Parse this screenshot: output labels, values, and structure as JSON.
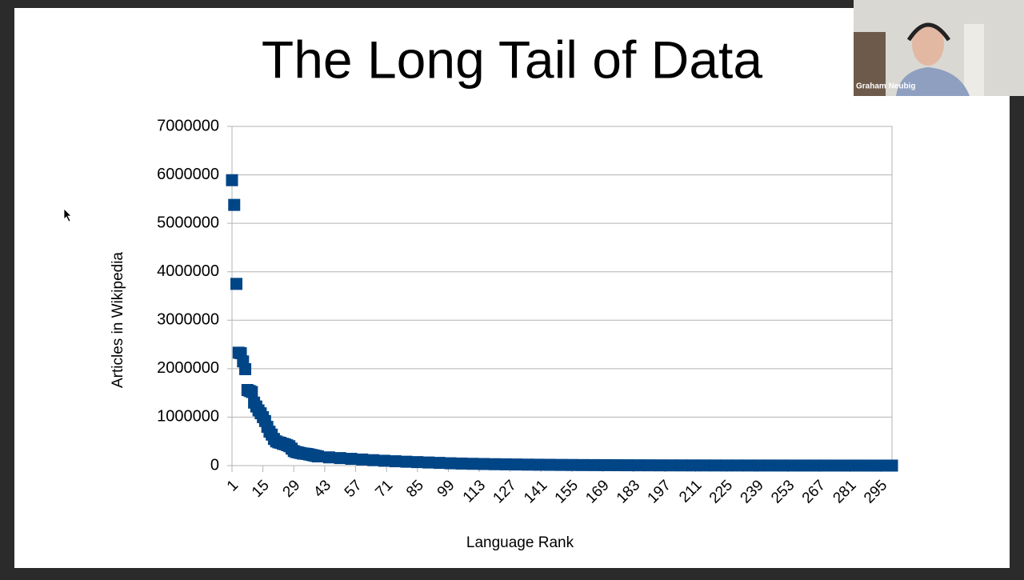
{
  "chart_data": {
    "type": "scatter",
    "title": "The Long Tail of Data",
    "x_label": "Language Rank",
    "y_label": "Articles in Wikipedia",
    "color": "#004586",
    "grid": true,
    "xlim": [
      1,
      300
    ],
    "ylim": [
      0,
      7000000
    ],
    "xticks": [
      1,
      15,
      29,
      43,
      57,
      71,
      85,
      99,
      113,
      127,
      141,
      155,
      169,
      183,
      197,
      211,
      225,
      239,
      253,
      267,
      281,
      295
    ],
    "yticks": [
      0,
      1000000,
      2000000,
      3000000,
      4000000,
      5000000,
      6000000,
      7000000
    ],
    "x": [
      1,
      2,
      3,
      4,
      5,
      6,
      7,
      8,
      9,
      10,
      11,
      12,
      13,
      14,
      15,
      16,
      17,
      18,
      19,
      20,
      21,
      22,
      23,
      24,
      25,
      26,
      27,
      28,
      29,
      30,
      31,
      32,
      33,
      34,
      35,
      36,
      37,
      38,
      39,
      40,
      45,
      50,
      55,
      60,
      65,
      70,
      75,
      80,
      85,
      90,
      95,
      100,
      105,
      110,
      115,
      120,
      125,
      130,
      135,
      140,
      145,
      150,
      155,
      160,
      165,
      170,
      175,
      180,
      185,
      190,
      195,
      200,
      205,
      210,
      215,
      220,
      225,
      230,
      235,
      240,
      245,
      250,
      255,
      260,
      265,
      270,
      275,
      280,
      285,
      290,
      295,
      300
    ],
    "values": [
      5890000,
      5380000,
      3750000,
      2330000,
      2320000,
      2150000,
      1990000,
      1560000,
      1540000,
      1520000,
      1300000,
      1220000,
      1140000,
      1080000,
      1000000,
      920000,
      800000,
      700000,
      640000,
      550000,
      500000,
      480000,
      470000,
      450000,
      440000,
      420000,
      400000,
      350000,
      300000,
      280000,
      270000,
      260000,
      250000,
      245000,
      240000,
      230000,
      220000,
      210000,
      200000,
      190000,
      170000,
      155000,
      140000,
      125000,
      112000,
      100000,
      90000,
      80000,
      72000,
      64000,
      56000,
      48000,
      42000,
      37000,
      33000,
      29000,
      26000,
      23000,
      20000,
      18000,
      16000,
      14000,
      12500,
      11000,
      10000,
      9000,
      8000,
      7200,
      6400,
      5800,
      5200,
      4700,
      4200,
      3800,
      3400,
      3000,
      2700,
      2400,
      2100,
      1900,
      1700,
      1500,
      1300,
      1150,
      1000,
      900,
      800,
      700,
      600,
      500,
      400,
      300
    ]
  },
  "webcam": {
    "name": "Graham Neubig"
  }
}
